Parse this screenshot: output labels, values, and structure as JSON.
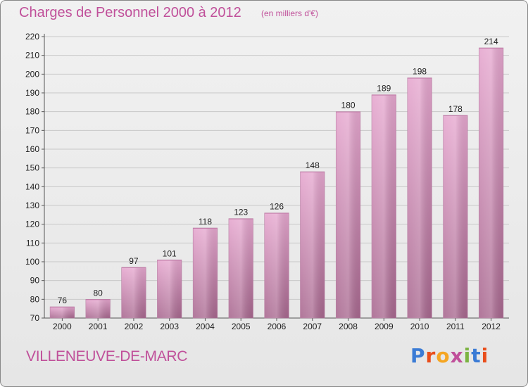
{
  "header": {
    "title": "Charges de Personnel 2000 à 2012",
    "subtitle": "(en milliers d'€)"
  },
  "footer": {
    "commune": "VILLENEUVE-DE-MARC",
    "logo_text": "Proxiti",
    "logo_colors": [
      "#3a7bd5",
      "#e94e1b",
      "#f5a623",
      "#c0509a",
      "#7cb342",
      "#3a7bd5",
      "#e94e1b"
    ]
  },
  "colors": {
    "title": "#c0509a",
    "bar_top": "#e6a7cf",
    "bar_bottom": "#a8688f",
    "grid": "#c8c8c8"
  },
  "chart_data": {
    "type": "bar",
    "title": "Charges de Personnel 2000 à 2012",
    "subtitle": "(en milliers d'€)",
    "categories": [
      "2000",
      "2001",
      "2002",
      "2003",
      "2004",
      "2005",
      "2006",
      "2007",
      "2008",
      "2009",
      "2010",
      "2011",
      "2012"
    ],
    "values": [
      76,
      80,
      97,
      101,
      118,
      123,
      126,
      148,
      180,
      189,
      198,
      178,
      214
    ],
    "ylim": [
      70,
      220
    ],
    "yticks": [
      70,
      80,
      90,
      100,
      110,
      120,
      130,
      140,
      150,
      160,
      170,
      180,
      190,
      200,
      210,
      220
    ],
    "grid": true,
    "xlabel": "",
    "ylabel": ""
  }
}
